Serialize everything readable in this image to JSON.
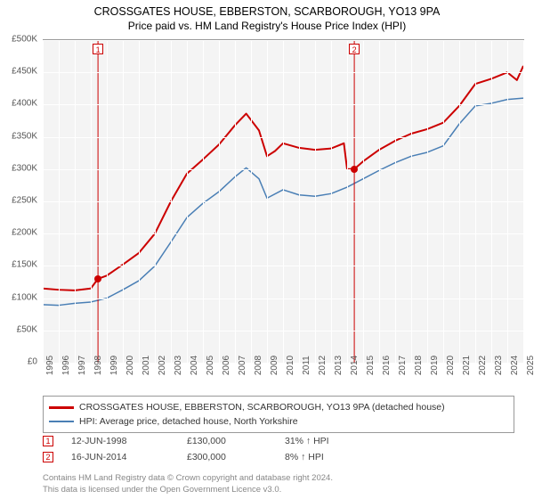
{
  "title": "CROSSGATES HOUSE, EBBERSTON, SCARBOROUGH, YO13 9PA",
  "subtitle": "Price paid vs. HM Land Registry's House Price Index (HPI)",
  "chart": {
    "type": "line",
    "background_color": "#f4f4f4",
    "grid_color": "#ffffff",
    "border_color": "#999999",
    "ylim": [
      0,
      500000
    ],
    "ytick_step": 50000,
    "y_ticks": [
      "£0",
      "£50K",
      "£100K",
      "£150K",
      "£200K",
      "£250K",
      "£300K",
      "£350K",
      "£400K",
      "£450K",
      "£500K"
    ],
    "x_years": [
      1995,
      1996,
      1997,
      1998,
      1999,
      2000,
      2001,
      2002,
      2003,
      2004,
      2005,
      2006,
      2007,
      2008,
      2009,
      2010,
      2011,
      2012,
      2013,
      2014,
      2015,
      2016,
      2017,
      2018,
      2019,
      2020,
      2021,
      2022,
      2023,
      2024,
      2025
    ],
    "label_fontsize": 10,
    "title_fontsize": 12.5,
    "series": {
      "property": {
        "label": "CROSSGATES HOUSE, EBBERSTON, SCARBOROUGH, YO13 9PA (detached house)",
        "color": "#cc0000",
        "line_width": 2,
        "points": [
          [
            1995.0,
            115000
          ],
          [
            1996.0,
            113000
          ],
          [
            1997.0,
            112000
          ],
          [
            1998.0,
            115000
          ],
          [
            1998.45,
            130000
          ],
          [
            1999.0,
            135000
          ],
          [
            2000.0,
            152000
          ],
          [
            2001.0,
            170000
          ],
          [
            2002.0,
            200000
          ],
          [
            2003.0,
            250000
          ],
          [
            2004.0,
            293000
          ],
          [
            2005.0,
            315000
          ],
          [
            2006.0,
            338000
          ],
          [
            2007.0,
            368000
          ],
          [
            2007.7,
            386000
          ],
          [
            2008.5,
            360000
          ],
          [
            2009.0,
            320000
          ],
          [
            2009.5,
            328000
          ],
          [
            2010.0,
            340000
          ],
          [
            2011.0,
            333000
          ],
          [
            2012.0,
            330000
          ],
          [
            2013.0,
            332000
          ],
          [
            2013.8,
            340000
          ],
          [
            2014.0,
            300000
          ],
          [
            2014.45,
            300000
          ],
          [
            2015.0,
            312000
          ],
          [
            2016.0,
            330000
          ],
          [
            2017.0,
            344000
          ],
          [
            2018.0,
            355000
          ],
          [
            2019.0,
            362000
          ],
          [
            2020.0,
            372000
          ],
          [
            2021.0,
            398000
          ],
          [
            2022.0,
            432000
          ],
          [
            2023.0,
            440000
          ],
          [
            2024.0,
            450000
          ],
          [
            2024.6,
            438000
          ],
          [
            2025.0,
            460000
          ]
        ]
      },
      "hpi": {
        "label": "HPI: Average price, detached house, North Yorkshire",
        "color": "#4a7fb5",
        "line_width": 1.5,
        "points": [
          [
            1995.0,
            90000
          ],
          [
            1996.0,
            89000
          ],
          [
            1997.0,
            92000
          ],
          [
            1998.0,
            94000
          ],
          [
            1999.0,
            100000
          ],
          [
            2000.0,
            113000
          ],
          [
            2001.0,
            127000
          ],
          [
            2002.0,
            150000
          ],
          [
            2003.0,
            187000
          ],
          [
            2004.0,
            225000
          ],
          [
            2005.0,
            247000
          ],
          [
            2006.0,
            265000
          ],
          [
            2007.0,
            288000
          ],
          [
            2007.7,
            302000
          ],
          [
            2008.5,
            285000
          ],
          [
            2009.0,
            255000
          ],
          [
            2010.0,
            268000
          ],
          [
            2011.0,
            260000
          ],
          [
            2012.0,
            258000
          ],
          [
            2013.0,
            262000
          ],
          [
            2014.0,
            272000
          ],
          [
            2015.0,
            285000
          ],
          [
            2016.0,
            298000
          ],
          [
            2017.0,
            310000
          ],
          [
            2018.0,
            320000
          ],
          [
            2019.0,
            326000
          ],
          [
            2020.0,
            336000
          ],
          [
            2021.0,
            370000
          ],
          [
            2022.0,
            398000
          ],
          [
            2023.0,
            402000
          ],
          [
            2024.0,
            408000
          ],
          [
            2025.0,
            410000
          ]
        ]
      }
    },
    "sale_markers": [
      {
        "n": "1",
        "year": 1998.45,
        "price": 130000
      },
      {
        "n": "2",
        "year": 2014.45,
        "price": 300000
      }
    ]
  },
  "legend": [
    {
      "color": "#cc0000",
      "text": "CROSSGATES HOUSE, EBBERSTON, SCARBOROUGH, YO13 9PA (detached house)"
    },
    {
      "color": "#4a7fb5",
      "text": "HPI: Average price, detached house, North Yorkshire"
    }
  ],
  "sales": [
    {
      "n": "1",
      "date": "12-JUN-1998",
      "price": "£130,000",
      "delta": "31% ↑ HPI"
    },
    {
      "n": "2",
      "date": "16-JUN-2014",
      "price": "£300,000",
      "delta": "8% ↑ HPI"
    }
  ],
  "footer": {
    "line1": "Contains HM Land Registry data © Crown copyright and database right 2024.",
    "line2": "This data is licensed under the Open Government Licence v3.0."
  }
}
